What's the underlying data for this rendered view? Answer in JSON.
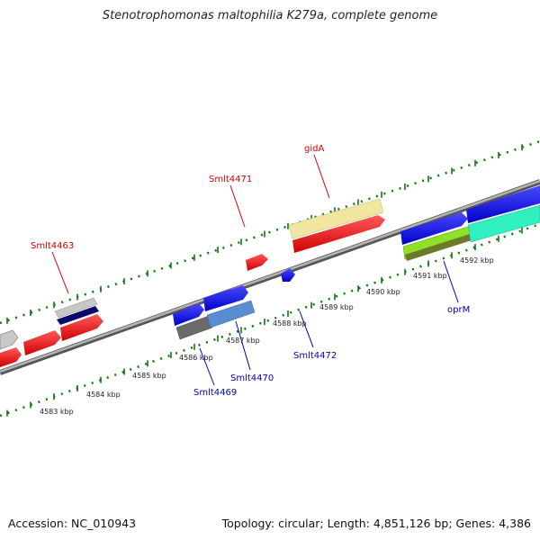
{
  "title": "Stenotrophomonas maltophilia K279a, complete genome",
  "footer": {
    "accession": "Accession: NC_010943",
    "topology": "Topology: circular; Length: 4,851,126 bp; Genes: 4,386"
  },
  "colors": {
    "backbone": "#8a8a8a",
    "forward_label": "#d00000",
    "reverse_label": "#0000b0",
    "tick": "#0a7a0a"
  },
  "tick_labels": [
    "4583 kbp",
    "4584 kbp",
    "4585 kbp",
    "4586 kbp",
    "4587 kbp",
    "4588 kbp",
    "4589 kbp",
    "4590 kbp",
    "4591 kbp",
    "4592 kbp"
  ],
  "gene_labels": {
    "forward": [
      "Smlt4463",
      "Smlt4471",
      "gidA"
    ],
    "reverse": [
      "Smlt4469",
      "Smlt4470",
      "Smlt4472",
      "oprM"
    ]
  }
}
